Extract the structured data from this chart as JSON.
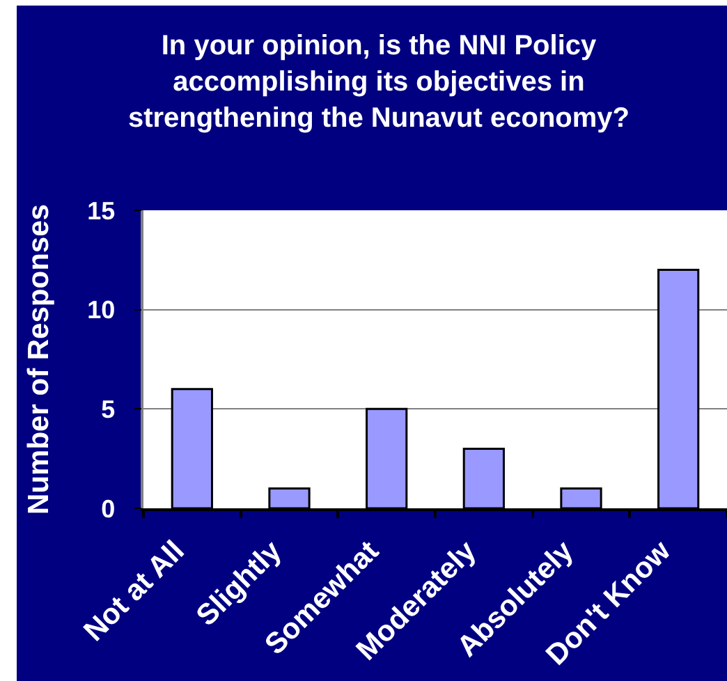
{
  "chart_data": {
    "type": "bar",
    "title": "In your opinion, is the NNI Policy\naccomplishing its objectives in\nstrengthening the Nunavut economy?",
    "ylabel": "Number of Responses",
    "categories": [
      "Not at All",
      "Slightly",
      "Somewhat",
      "Moderately",
      "Absolutely",
      "Don't Know"
    ],
    "values": [
      6,
      1,
      5,
      3,
      1,
      12
    ],
    "color": "#9999ff",
    "ylim": [
      0,
      15
    ],
    "yticks": [
      0,
      5,
      10,
      15
    ],
    "grid": "y"
  }
}
